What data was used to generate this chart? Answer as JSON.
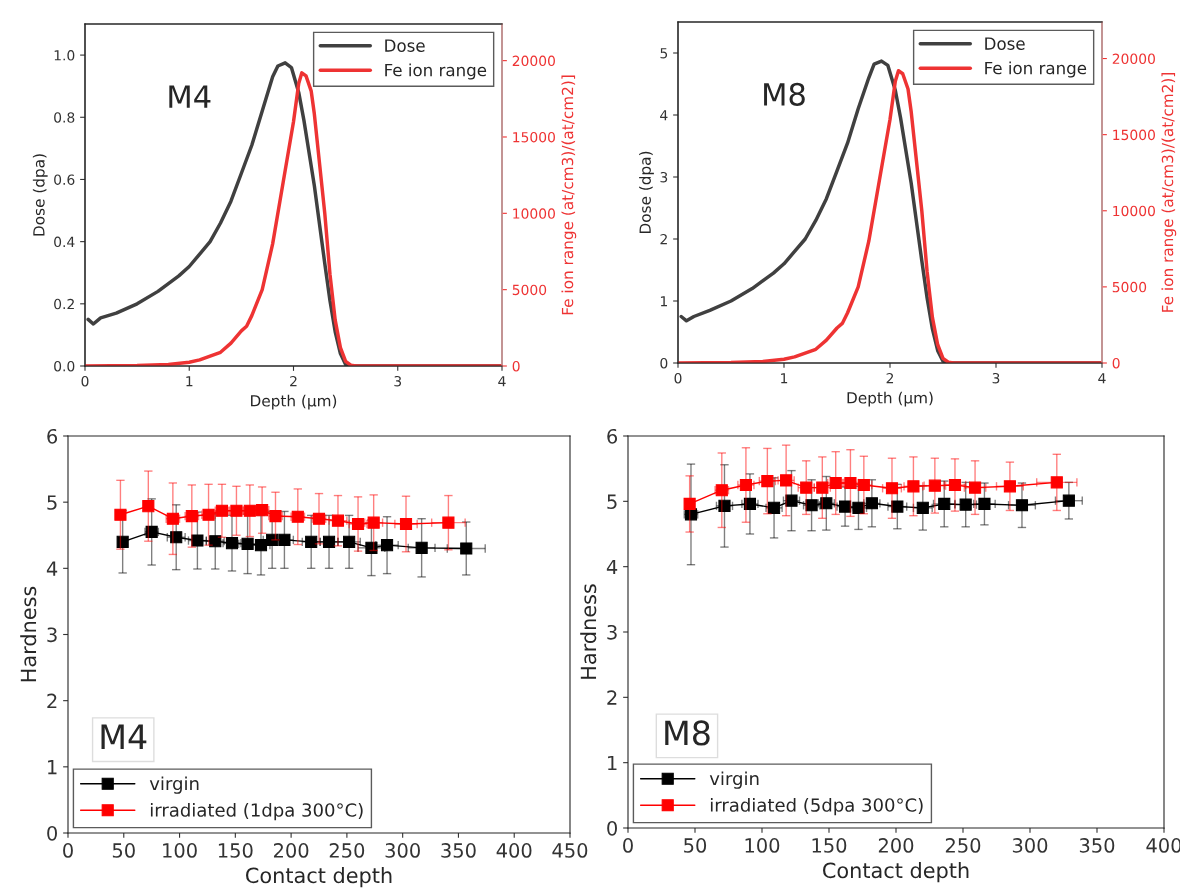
{
  "chart_data": [
    {
      "type": "line",
      "xlabel": "Depth (µm)",
      "ylabel": "Dose (dpa)",
      "y2label": "Fe ion range (at/cm3)/(at/cm2)]",
      "annotations": [
        "M4"
      ],
      "legend": "top right",
      "grid": false,
      "marker": "none",
      "line_style": "solid",
      "xlim": [
        0,
        4
      ],
      "xticks": [
        0,
        1,
        2,
        3,
        4
      ],
      "ylim": [
        0,
        1.1
      ],
      "yticks": [
        {
          "value": 0,
          "label": "0.0"
        },
        {
          "value": 0.2,
          "label": "0.2"
        },
        {
          "value": 0.4,
          "label": "0.4"
        },
        {
          "value": 0.6,
          "label": "0.6"
        },
        {
          "value": 0.8,
          "label": "0.8"
        },
        {
          "value": 1.0,
          "label": "1.0"
        }
      ],
      "y2lim": [
        0,
        22400
      ],
      "y2ticks": [
        0,
        5000,
        10000,
        15000,
        20000
      ],
      "series": [
        {
          "name": "Dose",
          "color": "#404040",
          "x": [
            0.03,
            0.08,
            0.15,
            0.3,
            0.5,
            0.7,
            0.9,
            1.0,
            1.1,
            1.2,
            1.3,
            1.4,
            1.5,
            1.6,
            1.7,
            1.8,
            1.85,
            1.92,
            1.98,
            2.05,
            2.1,
            2.2,
            2.3,
            2.35,
            2.4,
            2.45,
            2.5,
            2.55,
            4.0
          ],
          "values": [
            0.15,
            0.135,
            0.155,
            0.17,
            0.2,
            0.24,
            0.29,
            0.32,
            0.36,
            0.4,
            0.46,
            0.53,
            0.62,
            0.71,
            0.82,
            0.93,
            0.965,
            0.975,
            0.96,
            0.88,
            0.79,
            0.58,
            0.33,
            0.21,
            0.11,
            0.04,
            0.005,
            0,
            0
          ]
        },
        {
          "name": "Fe ion range",
          "color": "#ee3333",
          "axis": "y2",
          "x": [
            0,
            0.5,
            0.8,
            1.0,
            1.1,
            1.2,
            1.3,
            1.4,
            1.5,
            1.55,
            1.6,
            1.7,
            1.8,
            1.9,
            2.0,
            2.05,
            2.08,
            2.12,
            2.17,
            2.2,
            2.3,
            2.35,
            2.4,
            2.45,
            2.5,
            2.55,
            2.6,
            4.0
          ],
          "values": [
            0,
            30,
            100,
            250,
            400,
            650,
            900,
            1500,
            2300,
            2600,
            3300,
            5000,
            8000,
            12000,
            16000,
            18500,
            19200,
            19000,
            18000,
            16500,
            10000,
            6000,
            3000,
            1200,
            300,
            50,
            0,
            0
          ]
        }
      ]
    },
    {
      "type": "line",
      "xlabel": "Depth (µm)",
      "ylabel": "Dose (dpa)",
      "y2label": "Fe ion range (at/cm3)/(at/cm2)]",
      "annotations": [
        "M8"
      ],
      "legend": "top right",
      "grid": false,
      "marker": "none",
      "line_style": "solid",
      "xlim": [
        0,
        4
      ],
      "xticks": [
        0,
        1,
        2,
        3,
        4
      ],
      "ylim": [
        0,
        5.5
      ],
      "yticks": [
        0,
        1,
        2,
        3,
        4,
        5
      ],
      "y2lim": [
        0,
        22400
      ],
      "y2ticks": [
        0,
        5000,
        10000,
        15000,
        20000
      ],
      "series": [
        {
          "name": "Dose",
          "color": "#404040",
          "x": [
            0.03,
            0.08,
            0.15,
            0.3,
            0.5,
            0.7,
            0.9,
            1.0,
            1.1,
            1.2,
            1.3,
            1.4,
            1.5,
            1.6,
            1.7,
            1.8,
            1.85,
            1.92,
            1.98,
            2.05,
            2.1,
            2.2,
            2.3,
            2.35,
            2.4,
            2.45,
            2.5,
            2.55,
            4.0
          ],
          "values": [
            0.75,
            0.68,
            0.75,
            0.85,
            1.0,
            1.2,
            1.45,
            1.6,
            1.8,
            2.0,
            2.3,
            2.65,
            3.1,
            3.55,
            4.1,
            4.6,
            4.82,
            4.87,
            4.8,
            4.4,
            3.95,
            2.9,
            1.65,
            1.05,
            0.55,
            0.2,
            0.03,
            0,
            0
          ]
        },
        {
          "name": "Fe ion range",
          "color": "#ee3333",
          "axis": "y2",
          "x": [
            0,
            0.5,
            0.8,
            1.0,
            1.1,
            1.2,
            1.3,
            1.4,
            1.5,
            1.55,
            1.6,
            1.7,
            1.8,
            1.9,
            2.0,
            2.05,
            2.08,
            2.12,
            2.17,
            2.2,
            2.3,
            2.35,
            2.4,
            2.45,
            2.5,
            2.55,
            2.6,
            4.0
          ],
          "values": [
            0,
            30,
            100,
            250,
            400,
            650,
            900,
            1500,
            2300,
            2600,
            3300,
            5000,
            8000,
            12000,
            16000,
            18500,
            19200,
            19000,
            18000,
            16500,
            10000,
            6000,
            3000,
            1200,
            300,
            50,
            0,
            0
          ]
        }
      ]
    },
    {
      "type": "line",
      "xlabel": "Contact depth",
      "ylabel": "Hardness",
      "annotations": [
        "M4"
      ],
      "legend": "bottom left",
      "grid": false,
      "marker": "square",
      "line_style": "solid",
      "xlim": [
        0,
        450
      ],
      "xticks": [
        0,
        50,
        100,
        150,
        200,
        250,
        300,
        350,
        400,
        450
      ],
      "ylim": [
        0,
        6
      ],
      "yticks": [
        0,
        1,
        2,
        3,
        4,
        5,
        6
      ],
      "series": [
        {
          "name": "virgin",
          "color": "#000000",
          "x": [
            49,
            75,
            97,
            116,
            132,
            147,
            161,
            173,
            183,
            194,
            218,
            234,
            252,
            272,
            286,
            317,
            357
          ],
          "values": [
            4.4,
            4.55,
            4.47,
            4.42,
            4.41,
            4.38,
            4.37,
            4.35,
            4.43,
            4.43,
            4.4,
            4.4,
            4.4,
            4.31,
            4.35,
            4.31,
            4.3
          ],
          "errors": [
            0.47,
            0.5,
            0.49,
            0.43,
            0.42,
            0.42,
            0.45,
            0.45,
            0.43,
            0.43,
            0.4,
            0.4,
            0.4,
            0.42,
            0.43,
            0.44,
            0.4
          ],
          "xerrors": [
            3,
            6,
            8,
            8,
            8,
            8,
            8,
            8,
            8,
            8,
            8,
            8,
            10,
            12,
            10,
            12,
            17
          ]
        },
        {
          "name": "irradiated (1dpa 300°C)",
          "color": "#ff0000",
          "x": [
            47,
            72,
            94,
            111,
            126,
            138,
            151,
            163,
            174,
            186,
            206,
            225,
            242,
            260,
            274,
            303,
            341
          ],
          "values": [
            4.81,
            4.94,
            4.75,
            4.79,
            4.81,
            4.87,
            4.87,
            4.87,
            4.88,
            4.79,
            4.78,
            4.75,
            4.72,
            4.67,
            4.69,
            4.67,
            4.69
          ],
          "errors": [
            0.52,
            0.53,
            0.54,
            0.47,
            0.46,
            0.4,
            0.37,
            0.39,
            0.35,
            0.36,
            0.42,
            0.38,
            0.38,
            0.41,
            0.42,
            0.42,
            0.41
          ],
          "xerrors": [
            3,
            4,
            6,
            6,
            6,
            6,
            6,
            6,
            6,
            6,
            6,
            6,
            8,
            8,
            8,
            10,
            15
          ]
        }
      ]
    },
    {
      "type": "line",
      "xlabel": "Contact depth",
      "ylabel": "Hardness",
      "annotations": [
        "M8"
      ],
      "legend": "bottom left",
      "grid": false,
      "marker": "square",
      "line_style": "solid",
      "xlim": [
        0,
        400
      ],
      "xticks": [
        0,
        50,
        100,
        150,
        200,
        250,
        300,
        350,
        400
      ],
      "ylim": [
        0,
        6
      ],
      "yticks": [
        0,
        1,
        2,
        3,
        4,
        5,
        6
      ],
      "series": [
        {
          "name": "virgin",
          "color": "#000000",
          "x": [
            47,
            72,
            91,
            109,
            122,
            137,
            148,
            162,
            172,
            182,
            201,
            220,
            236,
            252,
            266,
            294,
            329
          ],
          "values": [
            4.8,
            4.93,
            4.96,
            4.9,
            5.01,
            4.94,
            4.97,
            4.92,
            4.9,
            4.97,
            4.92,
            4.9,
            4.96,
            4.95,
            4.96,
            4.94,
            5.01
          ],
          "errors": [
            0.77,
            0.63,
            0.46,
            0.46,
            0.46,
            0.39,
            0.41,
            0.3,
            0.33,
            0.36,
            0.34,
            0.34,
            0.35,
            0.34,
            0.32,
            0.34,
            0.28
          ],
          "xerrors": [
            5,
            6,
            6,
            6,
            6,
            6,
            6,
            6,
            6,
            6,
            7,
            7,
            8,
            8,
            8,
            10,
            10
          ]
        },
        {
          "name": "irradiated (5dpa 300°C)",
          "color": "#ff0000",
          "x": [
            46,
            70,
            88,
            104,
            118,
            133,
            145,
            155,
            166,
            176,
            197,
            213,
            229,
            244,
            259,
            285,
            320
          ],
          "values": [
            4.96,
            5.17,
            5.25,
            5.31,
            5.32,
            5.21,
            5.21,
            5.28,
            5.28,
            5.25,
            5.2,
            5.23,
            5.24,
            5.25,
            5.21,
            5.23,
            5.29
          ],
          "errors": [
            0.43,
            0.57,
            0.57,
            0.5,
            0.54,
            0.41,
            0.47,
            0.48,
            0.51,
            0.44,
            0.46,
            0.45,
            0.42,
            0.4,
            0.41,
            0.37,
            0.43
          ],
          "xerrors": [
            3,
            5,
            6,
            6,
            6,
            6,
            6,
            6,
            6,
            6,
            7,
            7,
            8,
            8,
            8,
            10,
            15
          ]
        }
      ]
    }
  ]
}
